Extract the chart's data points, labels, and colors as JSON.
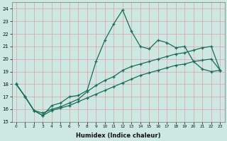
{
  "title": "",
  "xlabel": "Humidex (Indice chaleur)",
  "ylabel": "",
  "bg_color": "#cce8e0",
  "grid_color": "#e0a0a8",
  "line_color": "#1a6b5a",
  "xlim": [
    -0.5,
    23.5
  ],
  "ylim": [
    15,
    24.5
  ],
  "yticks": [
    15,
    16,
    17,
    18,
    19,
    20,
    21,
    22,
    23,
    24
  ],
  "xticks": [
    0,
    1,
    2,
    3,
    4,
    5,
    6,
    7,
    8,
    9,
    10,
    11,
    12,
    13,
    14,
    15,
    16,
    17,
    18,
    19,
    20,
    21,
    22,
    23
  ],
  "line1_x": [
    0,
    1,
    2,
    3,
    4,
    5,
    6,
    7,
    8,
    9,
    10,
    11,
    12,
    13,
    14,
    15,
    16,
    17,
    18,
    19,
    20,
    21,
    22,
    23
  ],
  "line1_y": [
    18.0,
    17.0,
    15.9,
    15.5,
    16.3,
    16.5,
    17.0,
    17.1,
    17.5,
    19.8,
    21.5,
    22.8,
    23.9,
    22.2,
    21.0,
    20.8,
    21.5,
    21.3,
    20.9,
    21.0,
    19.8,
    19.2,
    19.0,
    19.1
  ],
  "line2_x": [
    0,
    1,
    2,
    3,
    4,
    5,
    6,
    7,
    8,
    9,
    10,
    11,
    12,
    13,
    14,
    15,
    16,
    17,
    18,
    19,
    20,
    21,
    22,
    23
  ],
  "line2_y": [
    18.0,
    17.0,
    15.9,
    15.7,
    16.0,
    16.2,
    16.5,
    16.8,
    17.4,
    17.9,
    18.3,
    18.6,
    19.1,
    19.4,
    19.6,
    19.8,
    20.0,
    20.2,
    20.4,
    20.5,
    20.7,
    20.9,
    21.0,
    19.1
  ],
  "line3_x": [
    0,
    1,
    2,
    3,
    4,
    5,
    6,
    7,
    8,
    9,
    10,
    11,
    12,
    13,
    14,
    15,
    16,
    17,
    18,
    19,
    20,
    21,
    22,
    23
  ],
  "line3_y": [
    18.0,
    17.0,
    15.9,
    15.5,
    15.9,
    16.1,
    16.3,
    16.6,
    16.9,
    17.2,
    17.5,
    17.8,
    18.1,
    18.4,
    18.7,
    18.9,
    19.1,
    19.3,
    19.5,
    19.6,
    19.8,
    19.9,
    20.0,
    19.1
  ]
}
